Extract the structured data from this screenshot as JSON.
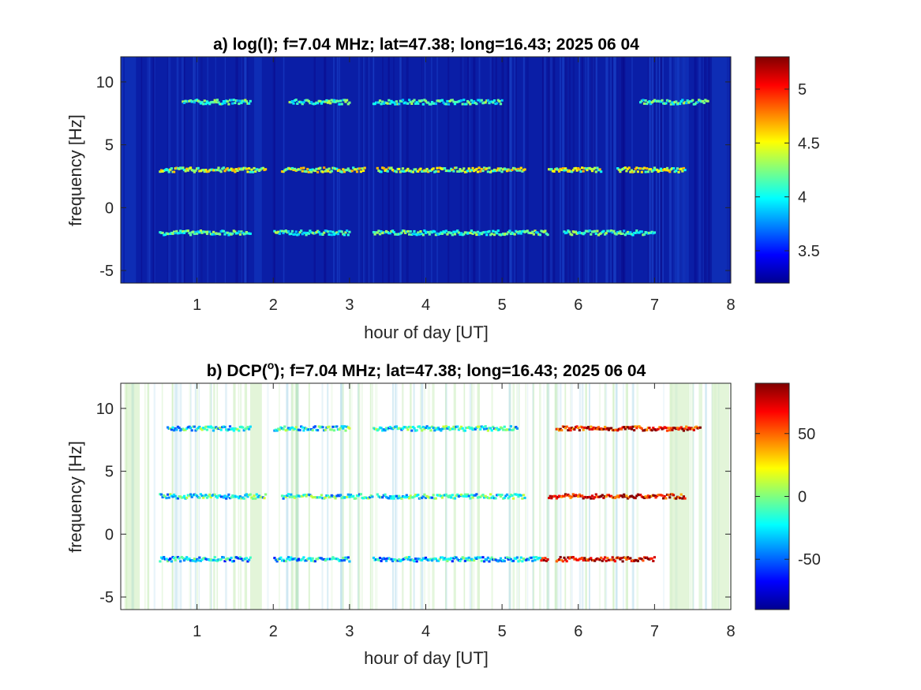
{
  "chart_data": [
    {
      "type": "heatmap",
      "title_main": "a) log(I); f=7.04 MHz;  lat=47.38; long=16.43; 2025 06 04",
      "xlabel": "hour of day [UT]",
      "ylabel": "frequency [Hz]",
      "xlim": [
        0,
        8
      ],
      "ylim": [
        -6,
        12
      ],
      "xticks": [
        1,
        2,
        3,
        4,
        5,
        6,
        7,
        8
      ],
      "yticks": [
        -5,
        0,
        5,
        10
      ],
      "xtick_labels": [
        "1",
        "2",
        "3",
        "4",
        "5",
        "6",
        "7",
        "8"
      ],
      "ytick_labels": [
        "-5",
        "0",
        "5",
        "10"
      ],
      "colormap": "jet",
      "clim": [
        3.2,
        5.3
      ],
      "colorbar_ticks": [
        3.5,
        4,
        4.5,
        5
      ],
      "colorbar_tick_labels": [
        "3.5",
        "4",
        "4.5",
        "5"
      ],
      "background_value": 3.35,
      "traces": [
        {
          "freq": 8.4,
          "segments": [
            [
              0.8,
              1.7
            ],
            [
              2.2,
              3.0
            ],
            [
              3.3,
              5.0
            ],
            [
              6.8,
              7.7
            ]
          ],
          "peak": 4.3
        },
        {
          "freq": 3.0,
          "segments": [
            [
              0.5,
              1.9
            ],
            [
              2.1,
              3.2
            ],
            [
              3.35,
              5.3
            ],
            [
              5.6,
              6.3
            ],
            [
              6.5,
              7.4
            ]
          ],
          "peak": 4.6
        },
        {
          "freq": -2.0,
          "segments": [
            [
              0.5,
              1.7
            ],
            [
              2.0,
              3.0
            ],
            [
              3.3,
              5.6
            ],
            [
              5.8,
              7.0
            ]
          ],
          "peak": 4.3
        }
      ]
    },
    {
      "type": "heatmap",
      "title_prefix": "b) DCP(",
      "title_sup": "o",
      "title_suffix": "); f=7.04 MHz;  lat=47.38; long=16.43; 2025 06 04",
      "xlabel": "hour of day [UT]",
      "ylabel": "frequency [Hz]",
      "xlim": [
        0,
        8
      ],
      "ylim": [
        -6,
        12
      ],
      "xticks": [
        1,
        2,
        3,
        4,
        5,
        6,
        7,
        8
      ],
      "yticks": [
        -5,
        0,
        5,
        10
      ],
      "xtick_labels": [
        "1",
        "2",
        "3",
        "4",
        "5",
        "6",
        "7",
        "8"
      ],
      "ytick_labels": [
        "-5",
        "0",
        "5",
        "10"
      ],
      "colormap": "jet",
      "clim": [
        -90,
        90
      ],
      "colorbar_ticks": [
        -50,
        0,
        50
      ],
      "colorbar_tick_labels": [
        "-50",
        "0",
        "50"
      ],
      "traces": [
        {
          "freq": 8.4,
          "segments": [
            [
              0.6,
              1.7
            ],
            [
              2.0,
              3.0
            ],
            [
              3.3,
              5.2
            ],
            [
              5.7,
              7.6
            ]
          ],
          "value_early": -20,
          "value_late": 70
        },
        {
          "freq": 3.0,
          "segments": [
            [
              0.5,
              1.9
            ],
            [
              2.1,
              3.3
            ],
            [
              3.35,
              5.3
            ],
            [
              5.6,
              7.4
            ]
          ],
          "value_early": -20,
          "value_late": 70
        },
        {
          "freq": -2.0,
          "segments": [
            [
              0.5,
              1.7
            ],
            [
              2.0,
              3.0
            ],
            [
              3.3,
              5.6
            ],
            [
              5.7,
              7.0
            ]
          ],
          "value_early": -30,
          "value_late": 75
        }
      ]
    }
  ]
}
